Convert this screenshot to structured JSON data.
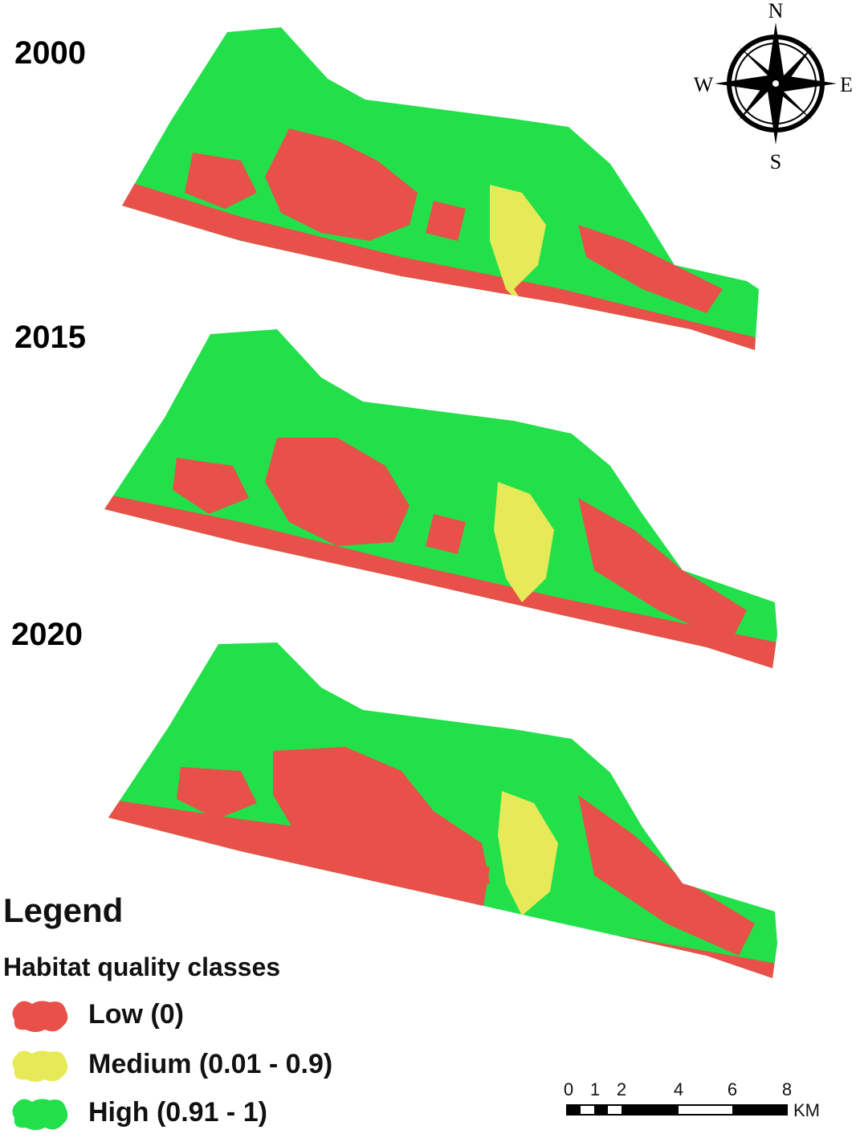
{
  "maps": [
    {
      "year": "2000"
    },
    {
      "year": "2015"
    },
    {
      "year": "2020"
    }
  ],
  "compass": {
    "north": "N",
    "south": "S",
    "east": "E",
    "west": "W"
  },
  "legend": {
    "title": "Legend",
    "subtitle": "Habitat quality classes",
    "items": [
      {
        "label": "Low (0)",
        "color": "#e8504a"
      },
      {
        "label": "Medium (0.01 - 0.9)",
        "color": "#e6ea58"
      },
      {
        "label": "High (0.91 - 1)",
        "color": "#22e04a"
      }
    ]
  },
  "scalebar": {
    "ticks": [
      "0",
      "1",
      "2",
      "4",
      "6",
      "8"
    ],
    "unit": "KM"
  }
}
